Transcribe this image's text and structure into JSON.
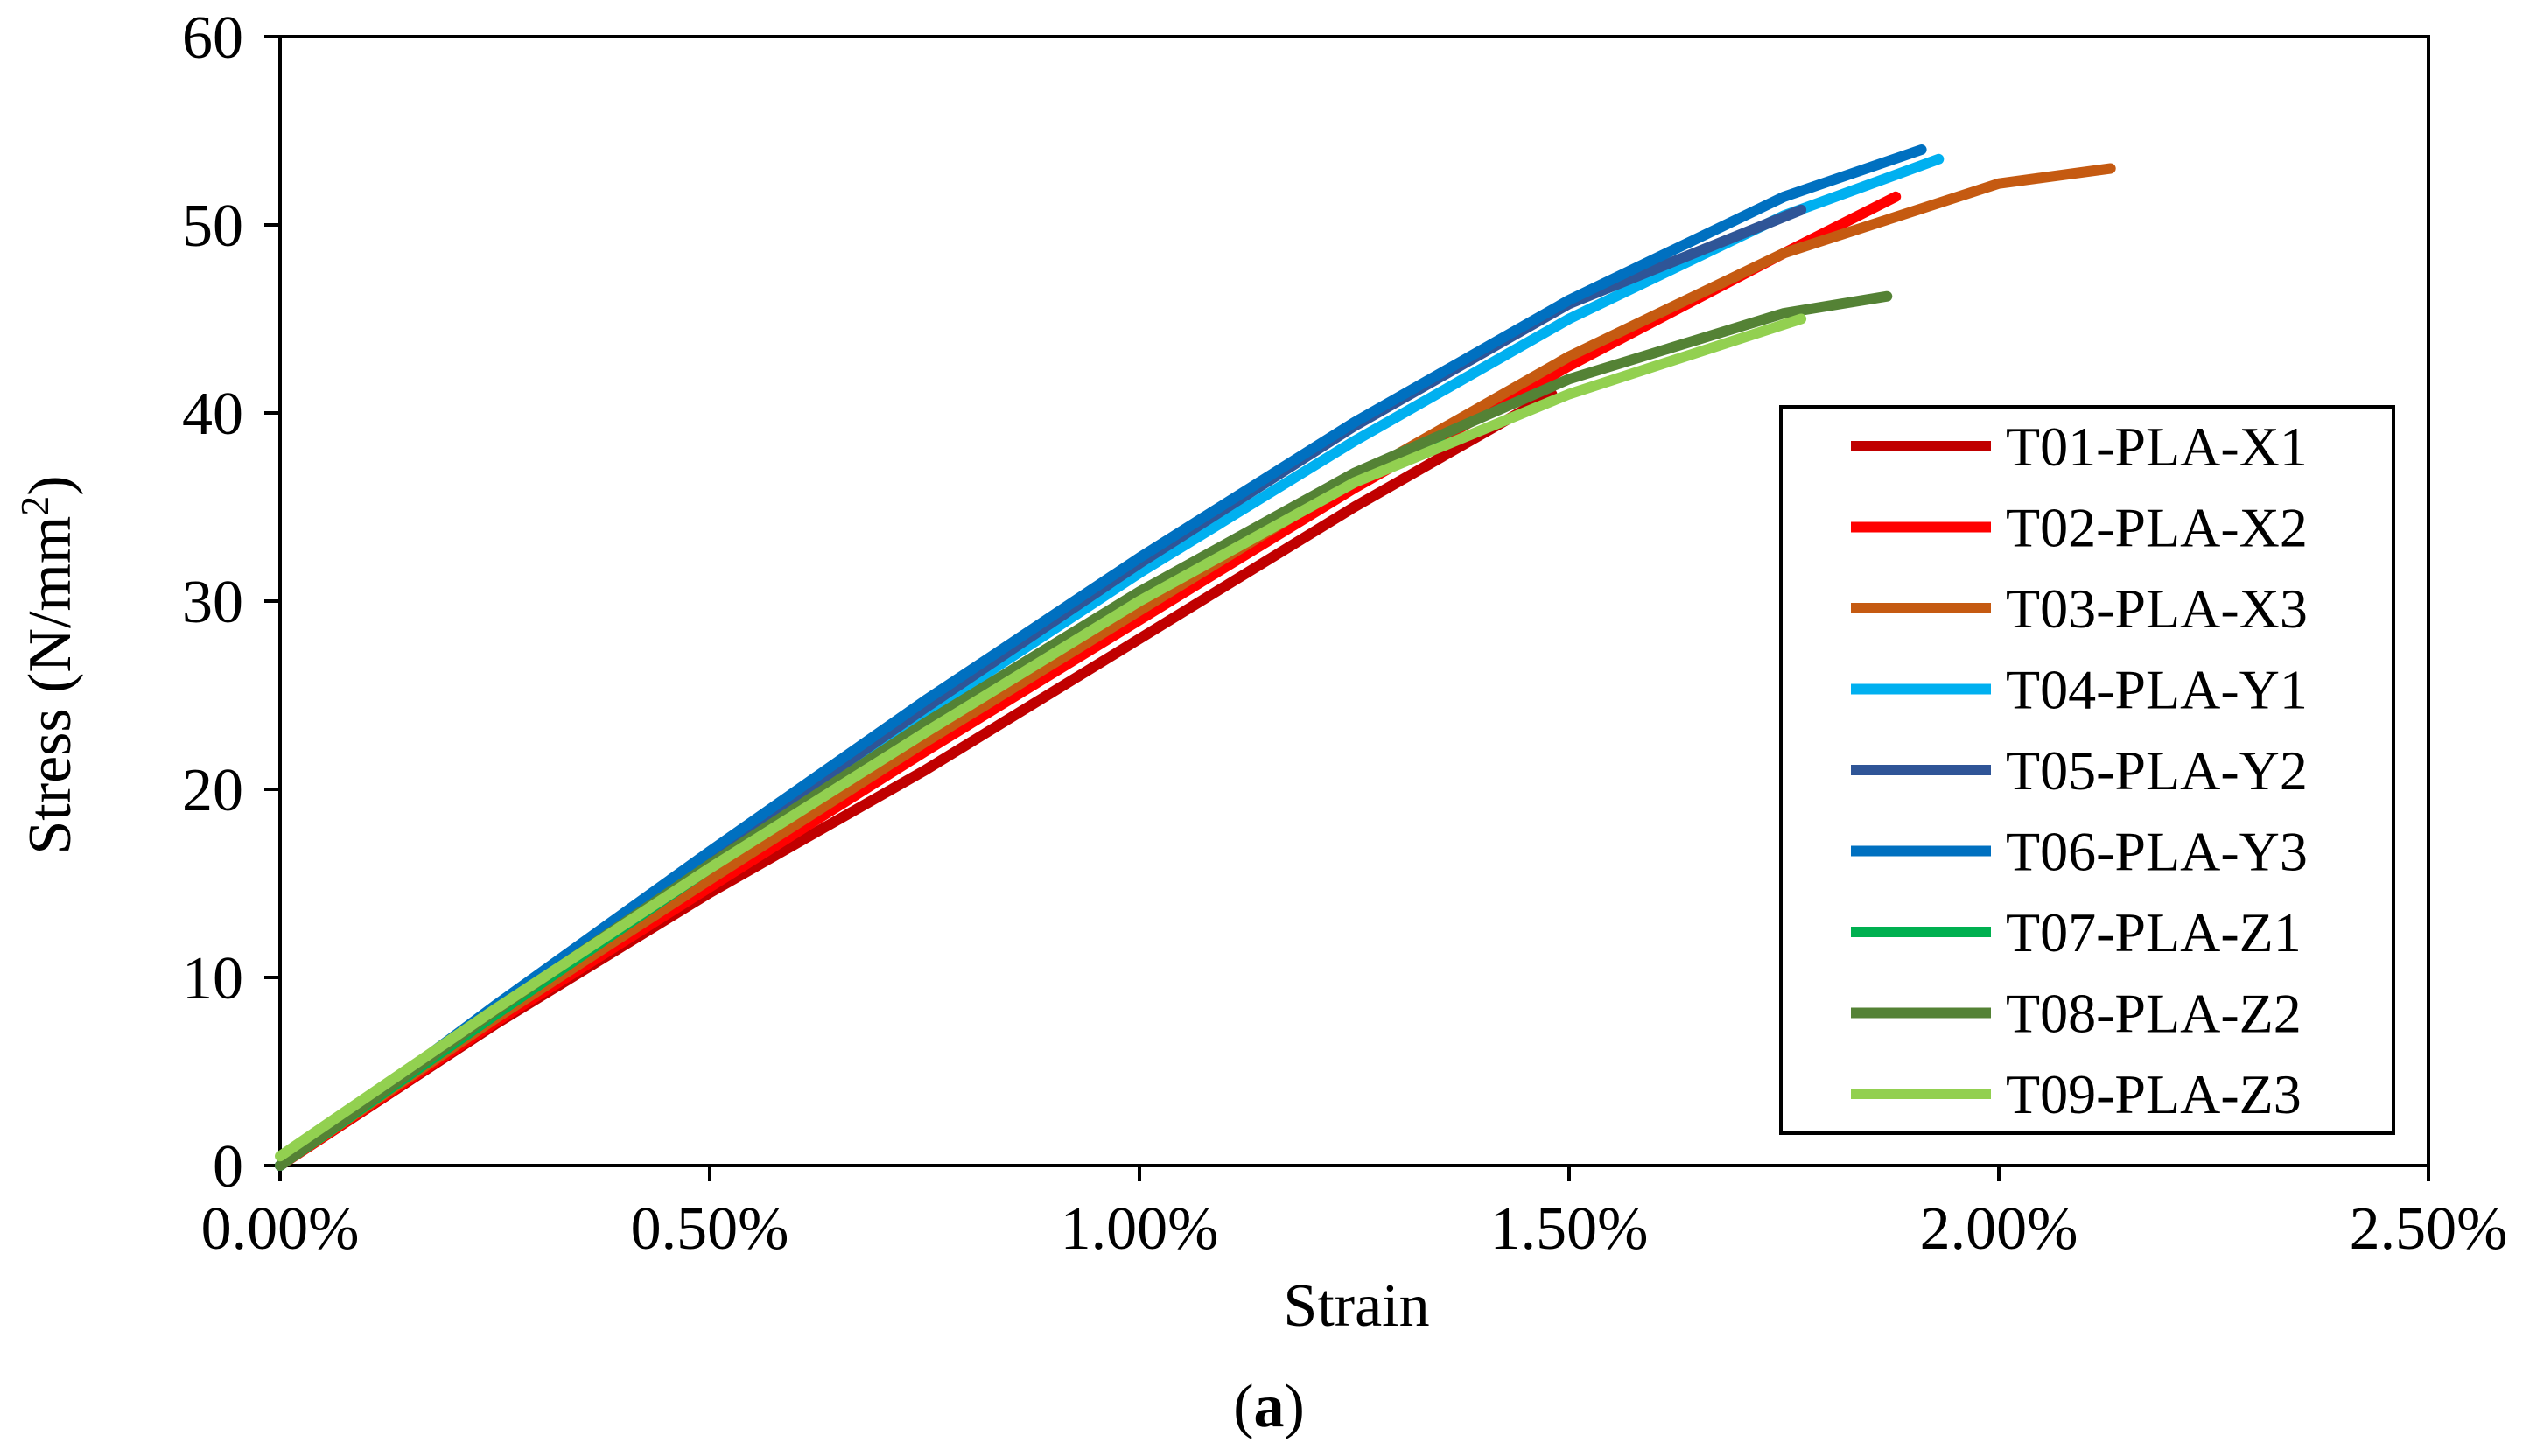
{
  "chart_data": {
    "type": "line",
    "title": "",
    "xlabel": "Strain",
    "ylabel_main": "Stress (N/mm",
    "ylabel_sup": "2",
    "ylabel_end": ")",
    "xlim": [
      0,
      0.025
    ],
    "ylim": [
      0,
      60
    ],
    "grid": false,
    "legend_position": "right",
    "x_ticks": [
      {
        "value": 0.0,
        "label": "0.00%"
      },
      {
        "value": 0.005,
        "label": "0.50%"
      },
      {
        "value": 0.01,
        "label": "1.00%"
      },
      {
        "value": 0.015,
        "label": "1.50%"
      },
      {
        "value": 0.02,
        "label": "2.00%"
      },
      {
        "value": 0.025,
        "label": "2.50%"
      }
    ],
    "y_ticks": [
      {
        "value": 0,
        "label": "0"
      },
      {
        "value": 10,
        "label": "10"
      },
      {
        "value": 20,
        "label": "20"
      },
      {
        "value": 30,
        "label": "30"
      },
      {
        "value": 40,
        "label": "40"
      },
      {
        "value": 50,
        "label": "50"
      },
      {
        "value": 60,
        "label": "60"
      }
    ],
    "series": [
      {
        "name": "T01-PLA-X1",
        "color": "#C00000",
        "x": [
          0,
          0.0025,
          0.005,
          0.0075,
          0.01,
          0.0125,
          0.0148
        ],
        "y": [
          0,
          7.5,
          14.5,
          21,
          28,
          35,
          41
        ]
      },
      {
        "name": "T02-PLA-X2",
        "color": "#FF0000",
        "x": [
          0,
          0.0025,
          0.005,
          0.0075,
          0.01,
          0.0125,
          0.015,
          0.0175,
          0.0188
        ],
        "y": [
          0,
          7.6,
          14.8,
          22,
          29,
          36,
          42.5,
          48.5,
          51.5
        ]
      },
      {
        "name": "T03-PLA-X3",
        "color": "#C55A11",
        "x": [
          0,
          0.0025,
          0.005,
          0.0075,
          0.01,
          0.0125,
          0.015,
          0.0175,
          0.02,
          0.0213
        ],
        "y": [
          0,
          7.8,
          15.2,
          22.5,
          29.5,
          36.5,
          43,
          48.5,
          52.2,
          53
        ]
      },
      {
        "name": "T04-PLA-Y1",
        "color": "#00B0F0",
        "x": [
          0,
          0.0025,
          0.005,
          0.0075,
          0.01,
          0.0125,
          0.015,
          0.0175,
          0.0193
        ],
        "y": [
          0,
          8.3,
          16.3,
          24,
          31.5,
          38.5,
          45,
          50.5,
          53.5
        ]
      },
      {
        "name": "T05-PLA-Y2",
        "color": "#2F5597",
        "x": [
          0,
          0.0025,
          0.005,
          0.0075,
          0.01,
          0.0125,
          0.015,
          0.0177
        ],
        "y": [
          0,
          8.3,
          16.4,
          24.3,
          32,
          39.3,
          45.8,
          50.8
        ]
      },
      {
        "name": "T06-PLA-Y3",
        "color": "#0070C0",
        "x": [
          0,
          0.0025,
          0.005,
          0.0075,
          0.01,
          0.0125,
          0.015,
          0.0175,
          0.0191
        ],
        "y": [
          0,
          8.5,
          16.7,
          24.7,
          32.3,
          39.5,
          46,
          51.5,
          54
        ]
      },
      {
        "name": "T07-PLA-Z1",
        "color": "#00B050",
        "x": [
          0,
          0.0025,
          0.005,
          0.0075,
          0.01,
          0.0125,
          0.0135
        ],
        "y": [
          0,
          8,
          15.8,
          23.3,
          30.3,
          36.5,
          38.5
        ]
      },
      {
        "name": "T08-PLA-Z2",
        "color": "#548235",
        "x": [
          0,
          0.0025,
          0.005,
          0.0075,
          0.01,
          0.0125,
          0.015,
          0.0175,
          0.0187
        ],
        "y": [
          0,
          8.2,
          16,
          23.5,
          30.5,
          36.8,
          41.8,
          45.3,
          46.2
        ]
      },
      {
        "name": "T09-PLA-Z3",
        "color": "#92D050",
        "x": [
          0,
          0.0025,
          0.005,
          0.0075,
          0.01,
          0.0125,
          0.015,
          0.0177
        ],
        "y": [
          0.5,
          8.3,
          15.8,
          23,
          30,
          36.3,
          41,
          45
        ]
      }
    ]
  },
  "caption": {
    "open": "(",
    "letter": "a",
    "close": ")"
  }
}
